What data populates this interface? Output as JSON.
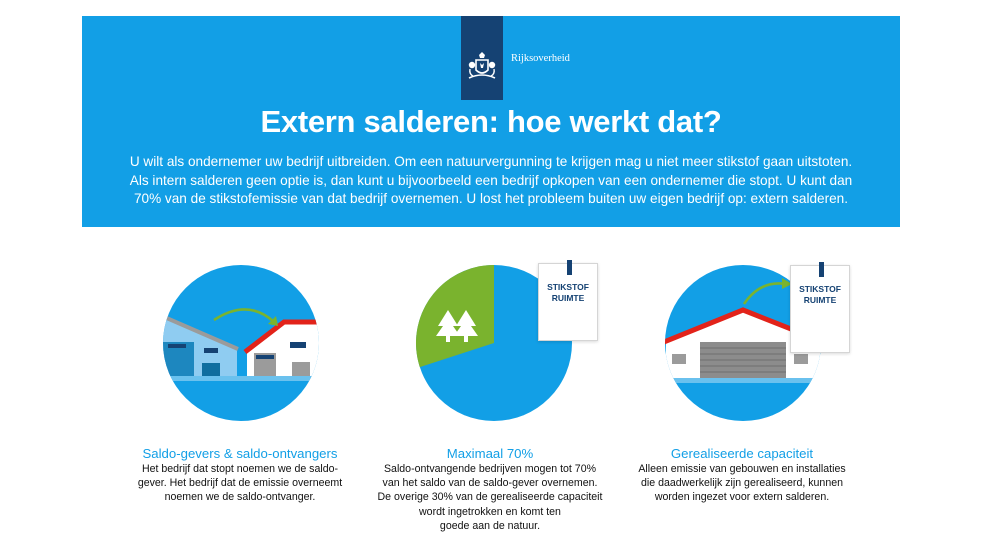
{
  "header": {
    "logo_text": "Rijksoverheid",
    "title": "Extern salderen: hoe werkt dat?",
    "intro_lines": [
      "U wilt als ondernemer uw bedrijf uitbreiden. Om een natuurvergunning te krijgen mag u niet meer stikstof gaan uitstoten.",
      "Als intern salderen geen optie is, dan kunt u bijvoorbeeld een bedrijf opkopen van een ondernemer die stopt. U kunt dan",
      "70% van de stikstofemissie van dat bedrijf overnemen. U lost het probleem buiten uw eigen bedrijf op: extern salderen."
    ]
  },
  "colors": {
    "banner": "#129fe6",
    "navy": "#154273",
    "green": "#7ab32e",
    "red_roof": "#e2231a"
  },
  "columns": [
    {
      "icon": "buildings-transfer-icon",
      "title": "Saldo-gevers & saldo-ontvangers",
      "lines": [
        "Het bedrijf dat stopt noemen we de saldo-",
        "gever. Het bedrijf dat de emissie overneemt",
        "noemen we de saldo-ontvanger."
      ]
    },
    {
      "icon": "pie-chart-trees-icon",
      "title": "Maximaal 70%",
      "note_lines": [
        "STIKSTOF",
        "RUIMTE"
      ],
      "pie_share_kept": 0.7,
      "lines": [
        "Saldo-ontvangende bedrijven mogen tot 70%",
        "van het saldo van de saldo-gever overnemen.",
        "De overige 30% van de gerealiseerde capaciteit",
        "wordt ingetrokken en komt ten",
        "goede aan de natuur."
      ]
    },
    {
      "icon": "barn-capacity-icon",
      "title": "Gerealiseerde capaciteit",
      "note_lines": [
        "STIKSTOF",
        "RUIMTE"
      ],
      "lines": [
        "Alleen emissie van gebouwen en installaties",
        "die daadwerkelijk zijn gerealiseerd, kunnen",
        "worden ingezet voor extern salderen."
      ]
    }
  ]
}
